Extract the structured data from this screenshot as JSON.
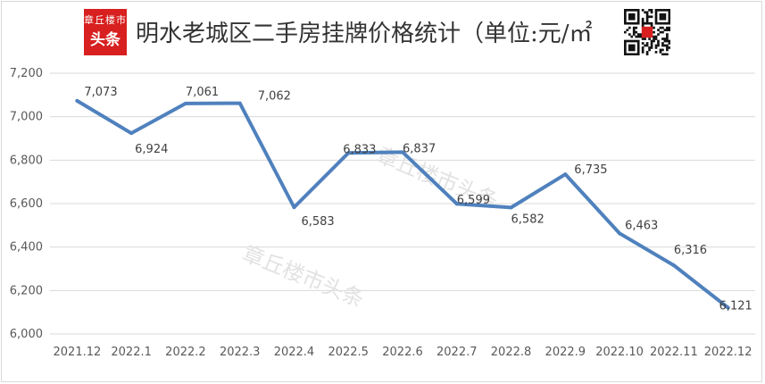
{
  "header": {
    "title": "明水老城区二手房挂牌价格统计（单位:元/㎡",
    "logo": {
      "top": "章丘楼市",
      "bottom": "头条"
    },
    "qr_icon": "qr-code-icon"
  },
  "watermarks": [
    "章丘楼市头条",
    "章丘楼市头条"
  ],
  "colors": {
    "line": "#4f81bd",
    "grid": "#d9d9d9",
    "brand_red": "#d7201f"
  },
  "chart_data": {
    "type": "line",
    "categories": [
      "2021.12",
      "2022.1",
      "2022.2",
      "2022.3",
      "2022.4",
      "2022.5",
      "2022.6",
      "2022.7",
      "2022.8",
      "2022.9",
      "2022.10",
      "2022.11",
      "2022.12"
    ],
    "series": [
      {
        "values": [
          7073,
          6924,
          7061,
          7062,
          6583,
          6833,
          6837,
          6599,
          6582,
          6735,
          6463,
          6316,
          6121
        ],
        "labels": [
          "7,073",
          "6,924",
          "7,061",
          "7,062",
          "6,583",
          "6,833",
          "6,837",
          "6,599",
          "6,582",
          "6,735",
          "6,463",
          "6,316",
          "6,121"
        ]
      }
    ],
    "yticks": [
      "7,200",
      "7,000",
      "6,800",
      "6,600",
      "6,400",
      "6,200",
      "6,000"
    ],
    "ylim": [
      6000,
      7200
    ],
    "grid": true,
    "legend": "none"
  }
}
